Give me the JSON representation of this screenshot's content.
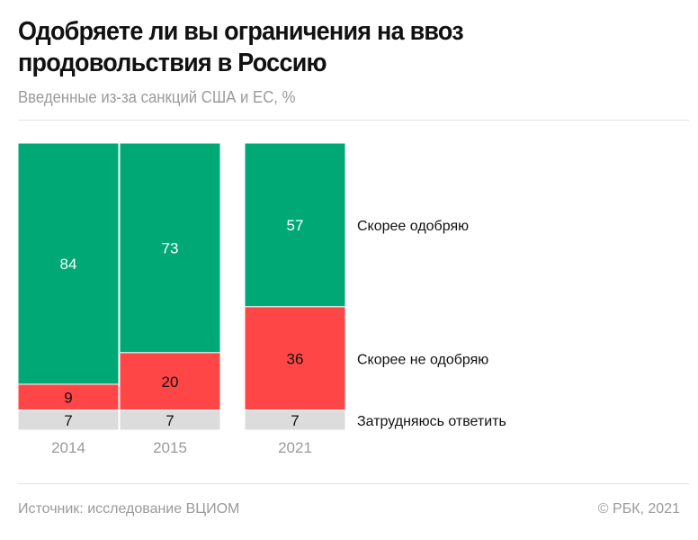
{
  "title": "Одобряете ли вы ограничения на ввоз продовольствия в Россию",
  "subtitle": "Введенные из-за санкций США и ЕС, %",
  "footer": {
    "source": "Источник: исследование ВЦИОМ",
    "copyright": "© РБК, 2021"
  },
  "chart_data": {
    "type": "bar",
    "stacked": true,
    "categories": [
      "2014",
      "2015",
      "2021"
    ],
    "series": [
      {
        "name": "Скорее одобряю",
        "values": [
          84,
          73,
          57
        ],
        "color": "#00a875"
      },
      {
        "name": "Скорее не одобряю",
        "values": [
          9,
          20,
          36
        ],
        "color": "#ff4646"
      },
      {
        "name": "Затрудняюсь ответить",
        "values": [
          7,
          7,
          7
        ],
        "color": "#dcdcdc"
      }
    ],
    "legend": "right",
    "grid": false
  }
}
